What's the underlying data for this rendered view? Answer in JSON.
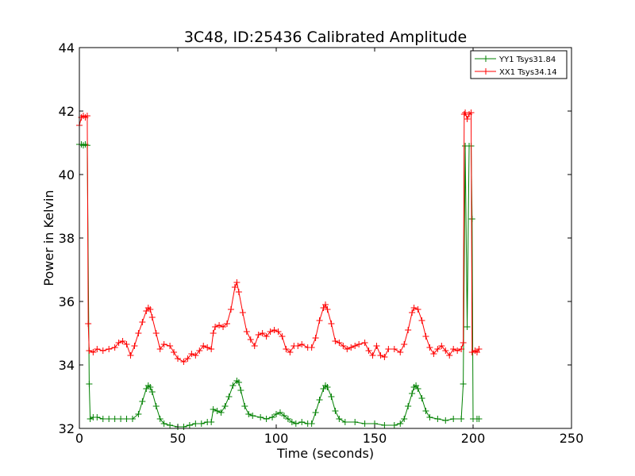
{
  "chart_data": {
    "type": "line",
    "title": "3C48, ID:25436 Calibrated Amplitude",
    "xlabel": "Time (seconds)",
    "ylabel": "Power in Kelvin",
    "xlim": [
      0,
      250
    ],
    "ylim": [
      32,
      44
    ],
    "xticks": [
      "0",
      "50",
      "100",
      "150",
      "200",
      "250"
    ],
    "yticks": [
      "32",
      "34",
      "36",
      "38",
      "40",
      "42",
      "44"
    ],
    "grid": false,
    "legend_position": "top-right",
    "series": [
      {
        "name": "YY1 Tsys31.84",
        "color": "#008000",
        "marker": "+",
        "points": [
          [
            0,
            40.95
          ],
          [
            1,
            40.95
          ],
          [
            2,
            40.92
          ],
          [
            3,
            40.95
          ],
          [
            4,
            40.92
          ],
          [
            5,
            33.4
          ],
          [
            5.5,
            32.3
          ],
          [
            7,
            32.35
          ],
          [
            9,
            32.35
          ],
          [
            12,
            32.3
          ],
          [
            15,
            32.3
          ],
          [
            18,
            32.3
          ],
          [
            21,
            32.3
          ],
          [
            24,
            32.3
          ],
          [
            27,
            32.3
          ],
          [
            30,
            32.45
          ],
          [
            32,
            32.85
          ],
          [
            34,
            33.25
          ],
          [
            35,
            33.35
          ],
          [
            36,
            33.3
          ],
          [
            37,
            33.15
          ],
          [
            39,
            32.7
          ],
          [
            41,
            32.3
          ],
          [
            43,
            32.15
          ],
          [
            46,
            32.1
          ],
          [
            50,
            32.05
          ],
          [
            53,
            32.05
          ],
          [
            56,
            32.1
          ],
          [
            59,
            32.15
          ],
          [
            62,
            32.15
          ],
          [
            65,
            32.2
          ],
          [
            67,
            32.2
          ],
          [
            68,
            32.6
          ],
          [
            70,
            32.55
          ],
          [
            72,
            32.5
          ],
          [
            74,
            32.7
          ],
          [
            76,
            33.0
          ],
          [
            78,
            33.35
          ],
          [
            80,
            33.5
          ],
          [
            81,
            33.45
          ],
          [
            82,
            33.2
          ],
          [
            84,
            32.7
          ],
          [
            86,
            32.45
          ],
          [
            88,
            32.4
          ],
          [
            92,
            32.35
          ],
          [
            95,
            32.3
          ],
          [
            98,
            32.35
          ],
          [
            100,
            32.45
          ],
          [
            102,
            32.5
          ],
          [
            104,
            32.4
          ],
          [
            106,
            32.3
          ],
          [
            108,
            32.2
          ],
          [
            110,
            32.15
          ],
          [
            113,
            32.2
          ],
          [
            116,
            32.15
          ],
          [
            118,
            32.15
          ],
          [
            120,
            32.5
          ],
          [
            122,
            32.9
          ],
          [
            124,
            33.25
          ],
          [
            125,
            33.35
          ],
          [
            126,
            33.3
          ],
          [
            128,
            33.0
          ],
          [
            130,
            32.55
          ],
          [
            132,
            32.3
          ],
          [
            135,
            32.2
          ],
          [
            140,
            32.2
          ],
          [
            145,
            32.15
          ],
          [
            150,
            32.15
          ],
          [
            155,
            32.1
          ],
          [
            160,
            32.1
          ],
          [
            163,
            32.15
          ],
          [
            165,
            32.3
          ],
          [
            167,
            32.7
          ],
          [
            169,
            33.1
          ],
          [
            170,
            33.3
          ],
          [
            171,
            33.35
          ],
          [
            172,
            33.25
          ],
          [
            174,
            32.95
          ],
          [
            176,
            32.55
          ],
          [
            178,
            32.35
          ],
          [
            182,
            32.3
          ],
          [
            186,
            32.25
          ],
          [
            190,
            32.3
          ],
          [
            194,
            32.3
          ],
          [
            195,
            33.4
          ],
          [
            196,
            40.9
          ],
          [
            197,
            35.2
          ],
          [
            198,
            40.9
          ],
          [
            199,
            40.9
          ],
          [
            199.5,
            38.6
          ],
          [
            200,
            32.3
          ],
          [
            202,
            32.3
          ],
          [
            203,
            32.3
          ]
        ]
      },
      {
        "name": "XX1 Tsys34.14",
        "color": "#ff0000",
        "marker": "+",
        "points": [
          [
            0,
            41.55
          ],
          [
            1,
            41.8
          ],
          [
            2,
            41.85
          ],
          [
            3,
            41.8
          ],
          [
            4,
            41.85
          ],
          [
            4.5,
            35.3
          ],
          [
            5,
            34.45
          ],
          [
            7,
            34.4
          ],
          [
            9,
            34.5
          ],
          [
            12,
            34.45
          ],
          [
            15,
            34.5
          ],
          [
            18,
            34.55
          ],
          [
            20,
            34.7
          ],
          [
            22,
            34.75
          ],
          [
            24,
            34.65
          ],
          [
            26,
            34.3
          ],
          [
            28,
            34.6
          ],
          [
            30,
            35.0
          ],
          [
            32,
            35.35
          ],
          [
            34,
            35.7
          ],
          [
            35,
            35.8
          ],
          [
            36,
            35.75
          ],
          [
            37,
            35.5
          ],
          [
            39,
            35.0
          ],
          [
            41,
            34.5
          ],
          [
            43,
            34.65
          ],
          [
            46,
            34.6
          ],
          [
            48,
            34.4
          ],
          [
            50,
            34.2
          ],
          [
            53,
            34.1
          ],
          [
            55,
            34.2
          ],
          [
            57,
            34.35
          ],
          [
            59,
            34.3
          ],
          [
            61,
            34.45
          ],
          [
            63,
            34.6
          ],
          [
            65,
            34.55
          ],
          [
            67,
            34.5
          ],
          [
            68,
            35.0
          ],
          [
            69,
            35.2
          ],
          [
            71,
            35.25
          ],
          [
            73,
            35.2
          ],
          [
            75,
            35.3
          ],
          [
            77,
            35.75
          ],
          [
            79,
            36.45
          ],
          [
            80,
            36.6
          ],
          [
            81,
            36.3
          ],
          [
            83,
            35.65
          ],
          [
            85,
            35.05
          ],
          [
            87,
            34.8
          ],
          [
            89,
            34.6
          ],
          [
            91,
            34.95
          ],
          [
            93,
            35.0
          ],
          [
            95,
            34.9
          ],
          [
            97,
            35.05
          ],
          [
            99,
            35.1
          ],
          [
            101,
            35.05
          ],
          [
            103,
            34.9
          ],
          [
            105,
            34.5
          ],
          [
            107,
            34.4
          ],
          [
            109,
            34.6
          ],
          [
            111,
            34.6
          ],
          [
            113,
            34.65
          ],
          [
            116,
            34.55
          ],
          [
            118,
            34.55
          ],
          [
            120,
            34.85
          ],
          [
            122,
            35.4
          ],
          [
            124,
            35.8
          ],
          [
            125,
            35.9
          ],
          [
            126,
            35.75
          ],
          [
            128,
            35.3
          ],
          [
            130,
            34.75
          ],
          [
            132,
            34.7
          ],
          [
            134,
            34.6
          ],
          [
            136,
            34.5
          ],
          [
            138,
            34.55
          ],
          [
            140,
            34.6
          ],
          [
            142,
            34.65
          ],
          [
            145,
            34.7
          ],
          [
            147,
            34.45
          ],
          [
            149,
            34.3
          ],
          [
            151,
            34.6
          ],
          [
            153,
            34.3
          ],
          [
            155,
            34.25
          ],
          [
            157,
            34.5
          ],
          [
            160,
            34.5
          ],
          [
            163,
            34.4
          ],
          [
            165,
            34.65
          ],
          [
            167,
            35.1
          ],
          [
            169,
            35.65
          ],
          [
            170,
            35.8
          ],
          [
            172,
            35.75
          ],
          [
            174,
            35.4
          ],
          [
            176,
            34.9
          ],
          [
            178,
            34.55
          ],
          [
            180,
            34.35
          ],
          [
            182,
            34.5
          ],
          [
            184,
            34.6
          ],
          [
            186,
            34.45
          ],
          [
            188,
            34.3
          ],
          [
            190,
            34.5
          ],
          [
            192,
            34.45
          ],
          [
            194,
            34.5
          ],
          [
            195,
            34.7
          ],
          [
            195.5,
            41.9
          ],
          [
            196,
            41.95
          ],
          [
            197,
            41.75
          ],
          [
            198,
            41.9
          ],
          [
            199,
            41.95
          ],
          [
            199.5,
            34.4
          ],
          [
            201,
            34.45
          ],
          [
            202,
            34.4
          ],
          [
            203,
            34.5
          ]
        ]
      }
    ]
  }
}
